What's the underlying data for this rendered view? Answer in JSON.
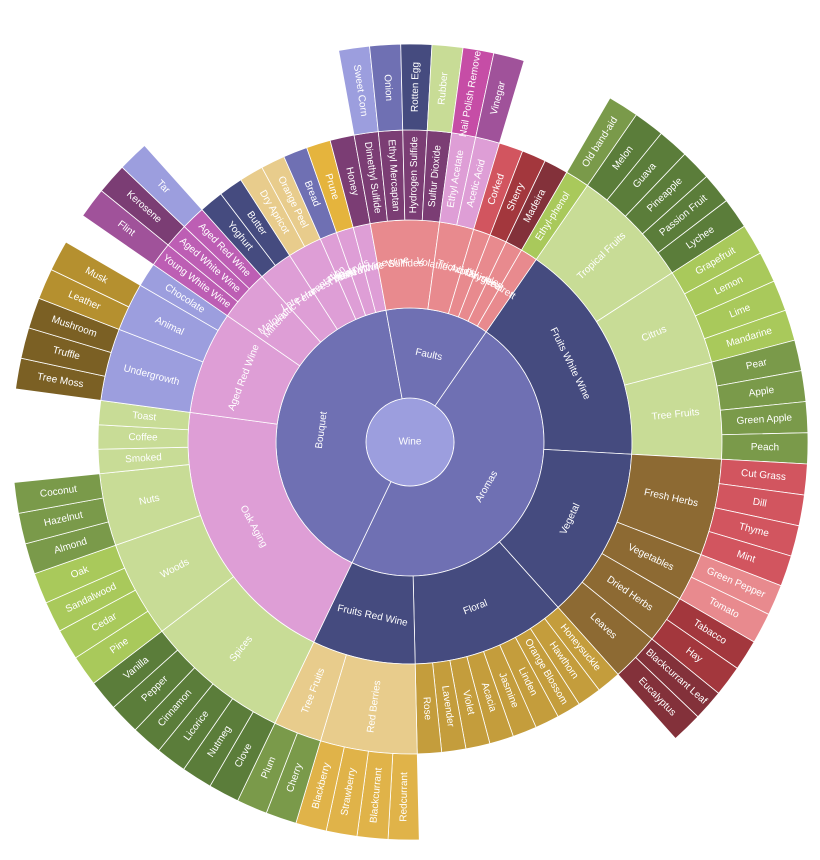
{
  "chart_data": {
    "type": "sunburst",
    "root": "Wine",
    "children": [
      {
        "name": "Aromas",
        "color": "#6f70b3",
        "children": [
          {
            "name": "Fruits White Wine",
            "color": "#454b7f",
            "children": [
              {
                "name": "Tropical Fruits",
                "color": "#c8dc96",
                "children": [
                  {
                    "name": "Melon",
                    "color": "#5b7d3a"
                  },
                  {
                    "name": "Guava",
                    "color": "#5b7d3a"
                  },
                  {
                    "name": "Pineapple",
                    "color": "#5b7d3a"
                  },
                  {
                    "name": "Passion Fruit",
                    "color": "#5b7d3a"
                  },
                  {
                    "name": "Lychee",
                    "color": "#5b7d3a"
                  }
                ]
              },
              {
                "name": "Citrus",
                "color": "#c8dc96",
                "children": [
                  {
                    "name": "Grapefruit",
                    "color": "#a9c95b"
                  },
                  {
                    "name": "Lemon",
                    "color": "#a9c95b"
                  },
                  {
                    "name": "Lime",
                    "color": "#a9c95b"
                  },
                  {
                    "name": "Mandarine",
                    "color": "#a9c95b"
                  }
                ]
              },
              {
                "name": "Tree Fruits",
                "color": "#c8dc96",
                "children": [
                  {
                    "name": "Pear",
                    "color": "#7a9a4a"
                  },
                  {
                    "name": "Apple",
                    "color": "#7a9a4a"
                  },
                  {
                    "name": "Green Apple",
                    "color": "#7a9a4a"
                  },
                  {
                    "name": "Peach",
                    "color": "#7a9a4a"
                  }
                ]
              }
            ]
          },
          {
            "name": "Vegetal",
            "color": "#454b7f",
            "children": [
              {
                "name": "Fresh Herbs",
                "color": "#8d6a33",
                "children": [
                  {
                    "name": "Cut Grass",
                    "color": "#d2555f"
                  },
                  {
                    "name": "Dill",
                    "color": "#d2555f"
                  },
                  {
                    "name": "Thyme",
                    "color": "#d2555f"
                  },
                  {
                    "name": "Mint",
                    "color": "#d2555f"
                  }
                ]
              },
              {
                "name": "Vegetables",
                "color": "#8d6a33",
                "children": [
                  {
                    "name": "Green Pepper",
                    "color": "#e88a8e"
                  },
                  {
                    "name": "Tomato",
                    "color": "#e88a8e"
                  }
                ]
              },
              {
                "name": "Dried Herbs",
                "color": "#8d6a33",
                "children": [
                  {
                    "name": "Tabacco",
                    "color": "#a3373d"
                  },
                  {
                    "name": "Hay",
                    "color": "#a3373d"
                  }
                ]
              },
              {
                "name": "Leaves",
                "color": "#8d6a33",
                "children": [
                  {
                    "name": "Blackcurrant Leaf",
                    "color": "#83313a"
                  },
                  {
                    "name": "Eucalyptus",
                    "color": "#83313a"
                  }
                ]
              }
            ]
          },
          {
            "name": "Floral",
            "color": "#454b7f",
            "children": [
              {
                "name": "Honeysuckle",
                "color": "#c49d3c"
              },
              {
                "name": "Hawthorn",
                "color": "#c49d3c"
              },
              {
                "name": "Orange Blossom",
                "color": "#c49d3c"
              },
              {
                "name": "Linden",
                "color": "#c49d3c"
              },
              {
                "name": "Jasmine",
                "color": "#c49d3c"
              },
              {
                "name": "Acacia",
                "color": "#c49d3c"
              },
              {
                "name": "Violet",
                "color": "#c49d3c"
              },
              {
                "name": "Lavender",
                "color": "#c49d3c"
              },
              {
                "name": "Rose",
                "color": "#c49d3c"
              }
            ]
          },
          {
            "name": "Fruits Red Wine",
            "color": "#454b7f",
            "children": [
              {
                "name": "Red Berries",
                "color": "#e8cc8c",
                "children": [
                  {
                    "name": "Redcurrant",
                    "color": "#e0b349"
                  },
                  {
                    "name": "Blackcurrant",
                    "color": "#e0b349"
                  },
                  {
                    "name": "Strawberry",
                    "color": "#e0b349"
                  },
                  {
                    "name": "Blackberry",
                    "color": "#e0b349"
                  }
                ]
              },
              {
                "name": "Tree Fruits",
                "color": "#e8cc8c",
                "children": [
                  {
                    "name": "Cherry",
                    "color": "#7a9a4a"
                  },
                  {
                    "name": "Plum",
                    "color": "#7a9a4a"
                  }
                ]
              }
            ]
          }
        ]
      },
      {
        "name": "Bouquet",
        "color": "#6f70b3",
        "children": [
          {
            "name": "Oak Aging",
            "color": "#de9ed6",
            "children": [
              {
                "name": "Spices",
                "color": "#c8dc96",
                "children": [
                  {
                    "name": "Clove",
                    "color": "#5b7d3a"
                  },
                  {
                    "name": "Nutmeg",
                    "color": "#5b7d3a"
                  },
                  {
                    "name": "Licorice",
                    "color": "#5b7d3a"
                  },
                  {
                    "name": "Cinnamon",
                    "color": "#5b7d3a"
                  },
                  {
                    "name": "Pepper",
                    "color": "#5b7d3a"
                  },
                  {
                    "name": "Vanilla",
                    "color": "#5b7d3a"
                  }
                ]
              },
              {
                "name": "Woods",
                "color": "#c8dc96",
                "children": [
                  {
                    "name": "Pine",
                    "color": "#a9c95b"
                  },
                  {
                    "name": "Cedar",
                    "color": "#a9c95b"
                  },
                  {
                    "name": "Sandalwood",
                    "color": "#a9c95b"
                  },
                  {
                    "name": "Oak",
                    "color": "#a9c95b"
                  }
                ]
              },
              {
                "name": "Nuts",
                "color": "#c8dc96",
                "children": [
                  {
                    "name": "Almond",
                    "color": "#7a9a4a"
                  },
                  {
                    "name": "Hazelnut",
                    "color": "#7a9a4a"
                  },
                  {
                    "name": "Coconut",
                    "color": "#7a9a4a"
                  }
                ]
              },
              {
                "name": "Smoked",
                "color": "#c8dc96"
              },
              {
                "name": "Coffee",
                "color": "#c8dc96"
              },
              {
                "name": "Toast",
                "color": "#c8dc96"
              }
            ]
          },
          {
            "name": "Aged Red Wine",
            "color": "#de9ed6",
            "children": [
              {
                "name": "Undergrowth",
                "color": "#9c9ede",
                "children": [
                  {
                    "name": "Tree Moss",
                    "color": "#7b6024"
                  },
                  {
                    "name": "Truffle",
                    "color": "#7b6024"
                  },
                  {
                    "name": "Mushroom",
                    "color": "#7b6024"
                  }
                ]
              },
              {
                "name": "Animal",
                "color": "#9c9ede",
                "children": [
                  {
                    "name": "Leather",
                    "color": "#b5902f"
                  },
                  {
                    "name": "Musk",
                    "color": "#b5902f"
                  }
                ]
              },
              {
                "name": "Chocolate",
                "color": "#9c9ede"
              }
            ]
          },
          {
            "name": "Mineral",
            "color": "#de9ed6",
            "children": [
              {
                "name": "Young White Wine",
                "color": "#bd5eb4",
                "children": [
                  {
                    "name": "Flint",
                    "color": "#a0529a"
                  }
                ]
              },
              {
                "name": "Aged White Wine",
                "color": "#bd5eb4",
                "children": [
                  {
                    "name": "Kerosene",
                    "color": "#7b3d74"
                  }
                ]
              },
              {
                "name": "Aged Red Wine",
                "color": "#bd5eb4",
                "children": [
                  {
                    "name": "Tar",
                    "color": "#9c9ede"
                  }
                ]
              }
            ]
          },
          {
            "name": "Malolactic Fermentation",
            "color": "#de9ed6",
            "children": [
              {
                "name": "Yoghurt",
                "color": "#454b7f"
              },
              {
                "name": "Butter",
                "color": "#454b7f"
              }
            ]
          },
          {
            "name": "Late Harvest / Botrytis",
            "color": "#de9ed6",
            "children": [
              {
                "name": "Dry Apricot",
                "color": "#e8cc8c"
              },
              {
                "name": "Orange Peel",
                "color": "#e8cc8c"
              }
            ]
          },
          {
            "name": "Yeast",
            "color": "#de9ed6",
            "children": [
              {
                "name": "Bread",
                "color": "#6f70b3"
              }
            ]
          },
          {
            "name": "Fortified Wine",
            "color": "#de9ed6",
            "children": [
              {
                "name": "Prune",
                "color": "#e5b43d"
              }
            ]
          },
          {
            "name": "Aged White Wine",
            "color": "#de9ed6",
            "children": [
              {
                "name": "Honey",
                "color": "#7b3d74"
              }
            ]
          }
        ]
      },
      {
        "name": "Faults",
        "color": "#6f70b3",
        "children": [
          {
            "name": "Sulfides",
            "color": "#e88a8e",
            "children": [
              {
                "name": "Dimethyl Sulfide",
                "color": "#7b3d74",
                "children": [
                  {
                    "name": "Sweet Corn",
                    "color": "#9c9ede"
                  }
                ]
              },
              {
                "name": "Ethyl Mercaptan",
                "color": "#7b3d74",
                "children": [
                  {
                    "name": "Onion",
                    "color": "#6f70b3"
                  }
                ]
              },
              {
                "name": "Hydrogen Sulfide",
                "color": "#7b3d74",
                "children": [
                  {
                    "name": "Rotten Egg",
                    "color": "#454b7f"
                  }
                ]
              },
              {
                "name": "Sulfur Dioxide",
                "color": "#7b3d74",
                "children": [
                  {
                    "name": "Rubber",
                    "color": "#c8dc96"
                  }
                ]
              }
            ]
          },
          {
            "name": "Volatile Acidity",
            "color": "#e88a8e",
            "children": [
              {
                "name": "Ethyl Acetate",
                "color": "#de9ed6",
                "children": [
                  {
                    "name": "Nail Polish Remover",
                    "color": "#c64da6"
                  }
                ]
              },
              {
                "name": "Acetic Acid",
                "color": "#de9ed6",
                "children": [
                  {
                    "name": "Vinegar",
                    "color": "#a0529a"
                  }
                ]
              }
            ]
          },
          {
            "name": "Trichloranisole",
            "color": "#e88a8e",
            "children": [
              {
                "name": "Corked",
                "color": "#d2555f"
              }
            ]
          },
          {
            "name": "Oxygen",
            "color": "#e88a8e",
            "children": [
              {
                "name": "Sherry",
                "color": "#a3373d"
              }
            ]
          },
          {
            "name": "Heat",
            "color": "#e88a8e",
            "children": [
              {
                "name": "Madeira",
                "color": "#83313a"
              }
            ]
          },
          {
            "name": "Brett",
            "color": "#e88a8e",
            "children": [
              {
                "name": "Ethyl-phenol",
                "color": "#a9c95b",
                "children": [
                  {
                    "name": "Old band-aid",
                    "color": "#7a9a4a"
                  }
                ]
              }
            ]
          }
        ]
      }
    ]
  }
}
